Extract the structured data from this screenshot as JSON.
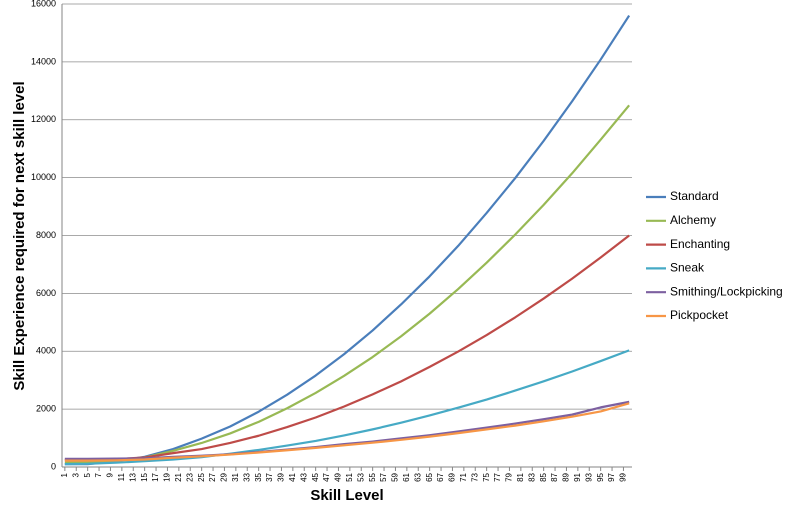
{
  "chart_data": {
    "type": "line",
    "y_label": "Skill Experience required for next skill level",
    "x_label": "Skill Level",
    "x": [
      1,
      5,
      10,
      15,
      20,
      25,
      30,
      35,
      40,
      45,
      50,
      55,
      60,
      65,
      70,
      75,
      80,
      85,
      90,
      95,
      100
    ],
    "series": [
      {
        "name": "Standard",
        "color": "#4a7ebb",
        "values": [
          100,
          100,
          200,
          350,
          620,
          980,
          1400,
          1910,
          2500,
          3160,
          3900,
          4720,
          5620,
          6590,
          7640,
          8780,
          9980,
          11270,
          12640,
          14080,
          15600
        ]
      },
      {
        "name": "Alchemy",
        "color": "#98b954",
        "values": [
          150,
          160,
          220,
          330,
          560,
          830,
          1160,
          1560,
          2030,
          2560,
          3150,
          3800,
          4520,
          5300,
          6150,
          7060,
          8030,
          9060,
          10150,
          11310,
          12500
        ]
      },
      {
        "name": "Enchanting",
        "color": "#be4b48",
        "values": [
          250,
          250,
          270,
          330,
          480,
          620,
          830,
          1080,
          1380,
          1710,
          2090,
          2510,
          2960,
          3460,
          3990,
          4560,
          5170,
          5820,
          6510,
          7240,
          8000
        ]
      },
      {
        "name": "Sneak",
        "color": "#46aac5",
        "values": [
          100,
          110,
          150,
          200,
          260,
          340,
          460,
          590,
          740,
          900,
          1090,
          1300,
          1530,
          1780,
          2050,
          2330,
          2640,
          2960,
          3300,
          3660,
          4030
        ]
      },
      {
        "name": "Smithing/Lockpicking",
        "color": "#7d60a0",
        "values": [
          280,
          280,
          290,
          300,
          350,
          390,
          440,
          520,
          600,
          690,
          790,
          880,
          990,
          1100,
          1230,
          1360,
          1500,
          1650,
          1810,
          2060,
          2250
        ]
      },
      {
        "name": "Pickpocket",
        "color": "#f79646",
        "values": [
          220,
          220,
          230,
          260,
          320,
          370,
          430,
          500,
          580,
          660,
          750,
          840,
          940,
          1050,
          1170,
          1300,
          1430,
          1580,
          1740,
          1920,
          2200
        ]
      }
    ],
    "xlim": [
      0.5,
      100.5
    ],
    "xticks": [
      1,
      3,
      5,
      7,
      9,
      11,
      13,
      15,
      17,
      19,
      21,
      23,
      25,
      27,
      29,
      31,
      33,
      35,
      37,
      39,
      41,
      43,
      45,
      47,
      49,
      51,
      53,
      55,
      57,
      59,
      61,
      63,
      65,
      67,
      69,
      71,
      73,
      75,
      77,
      79,
      81,
      83,
      85,
      87,
      89,
      91,
      93,
      95,
      97,
      99
    ],
    "ylim": [
      0,
      16000
    ],
    "yticks": [
      0,
      2000,
      4000,
      6000,
      8000,
      10000,
      12000,
      14000,
      16000
    ],
    "grid": true,
    "legend": "right"
  }
}
